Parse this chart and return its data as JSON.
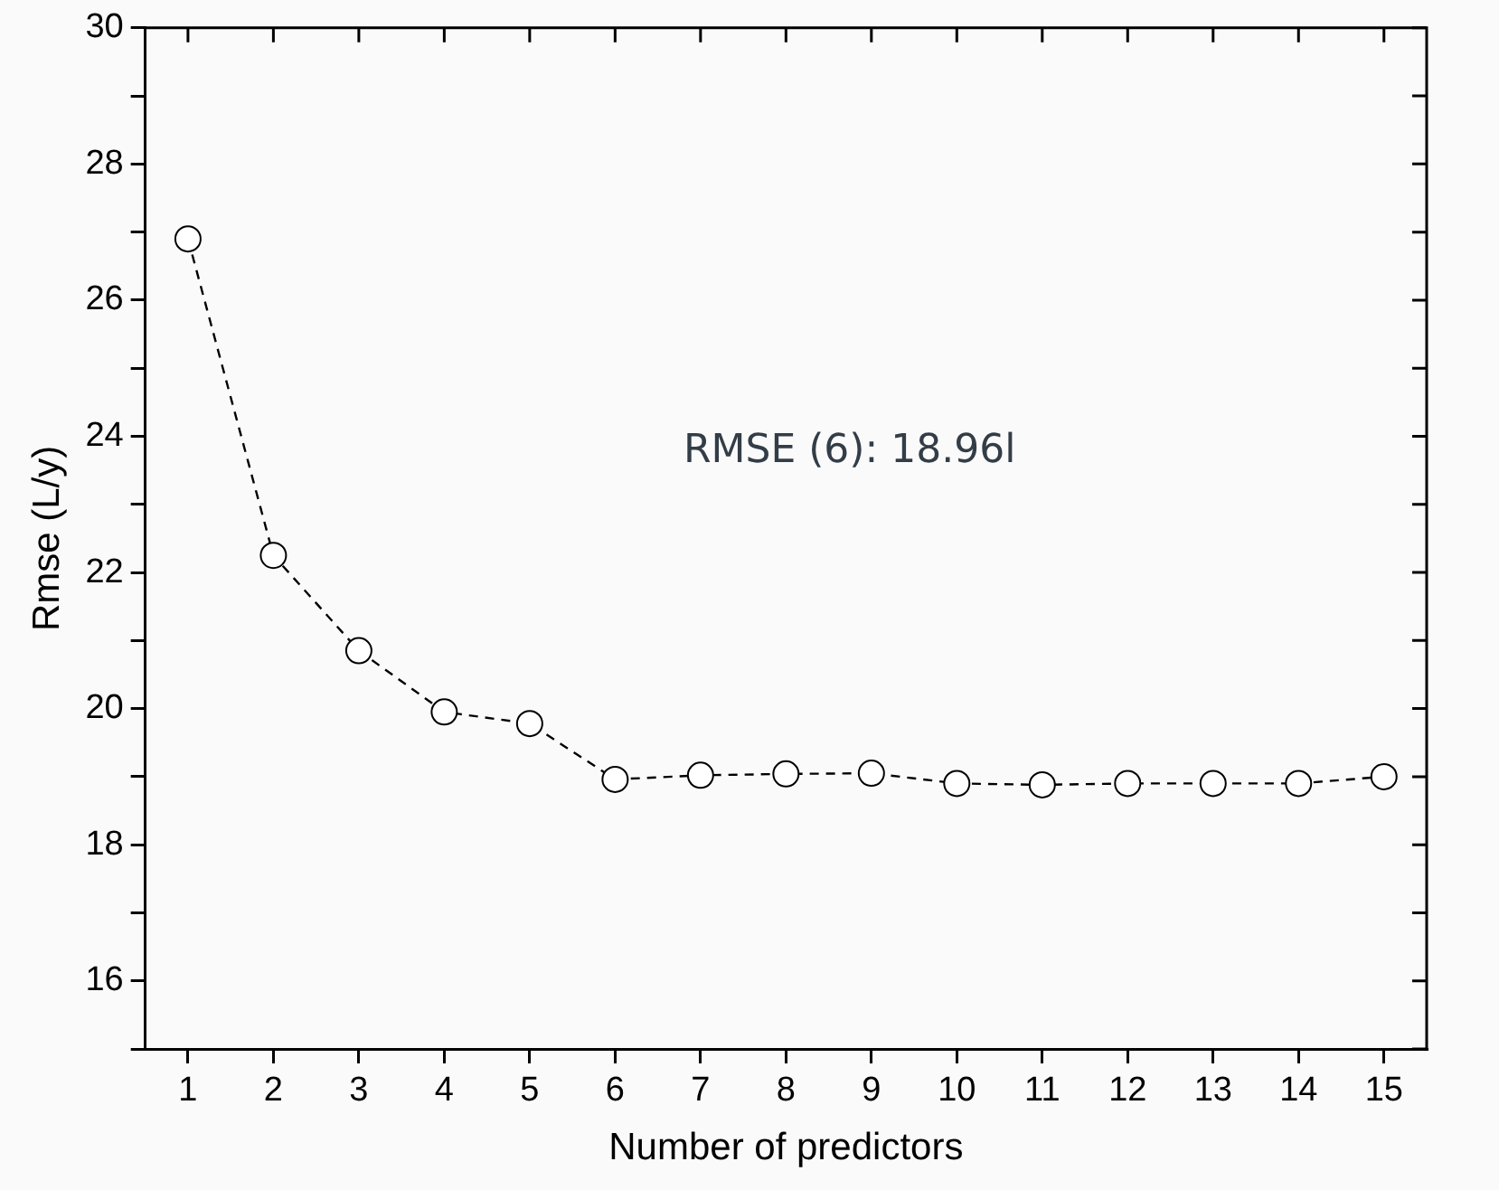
{
  "chart_data": {
    "type": "line",
    "xlabel": "Number of predictors",
    "ylabel": "Rmse (L/y)",
    "x": [
      1,
      2,
      3,
      4,
      5,
      6,
      7,
      8,
      9,
      10,
      11,
      12,
      13,
      14,
      15
    ],
    "series": [
      {
        "color": "#000000",
        "values": [
          26.9,
          22.25,
          20.85,
          19.95,
          19.78,
          18.96,
          19.02,
          19.04,
          19.05,
          18.9,
          18.88,
          18.9,
          18.9,
          18.9,
          19.0
        ]
      }
    ],
    "xlim": [
      0.5,
      15.5
    ],
    "xticks": [
      1,
      2,
      3,
      4,
      5,
      6,
      7,
      8,
      9,
      10,
      11,
      12,
      13,
      14,
      15
    ],
    "ylim": [
      15,
      30
    ],
    "yticks": [
      {
        "value": 15,
        "label": null
      },
      16,
      {
        "value": 17,
        "label": null
      },
      18,
      {
        "value": 19,
        "label": null
      },
      20,
      {
        "value": 21,
        "label": null
      },
      22,
      {
        "value": 23,
        "label": null
      },
      24,
      {
        "value": 25,
        "label": null
      },
      26,
      {
        "value": 27,
        "label": null
      },
      28,
      {
        "value": 29,
        "label": null
      },
      30
    ],
    "marker": "circle",
    "line_style": "dashed",
    "grid": false,
    "legend": false,
    "annotations": [
      "RMSE (6): 18.96l"
    ]
  }
}
